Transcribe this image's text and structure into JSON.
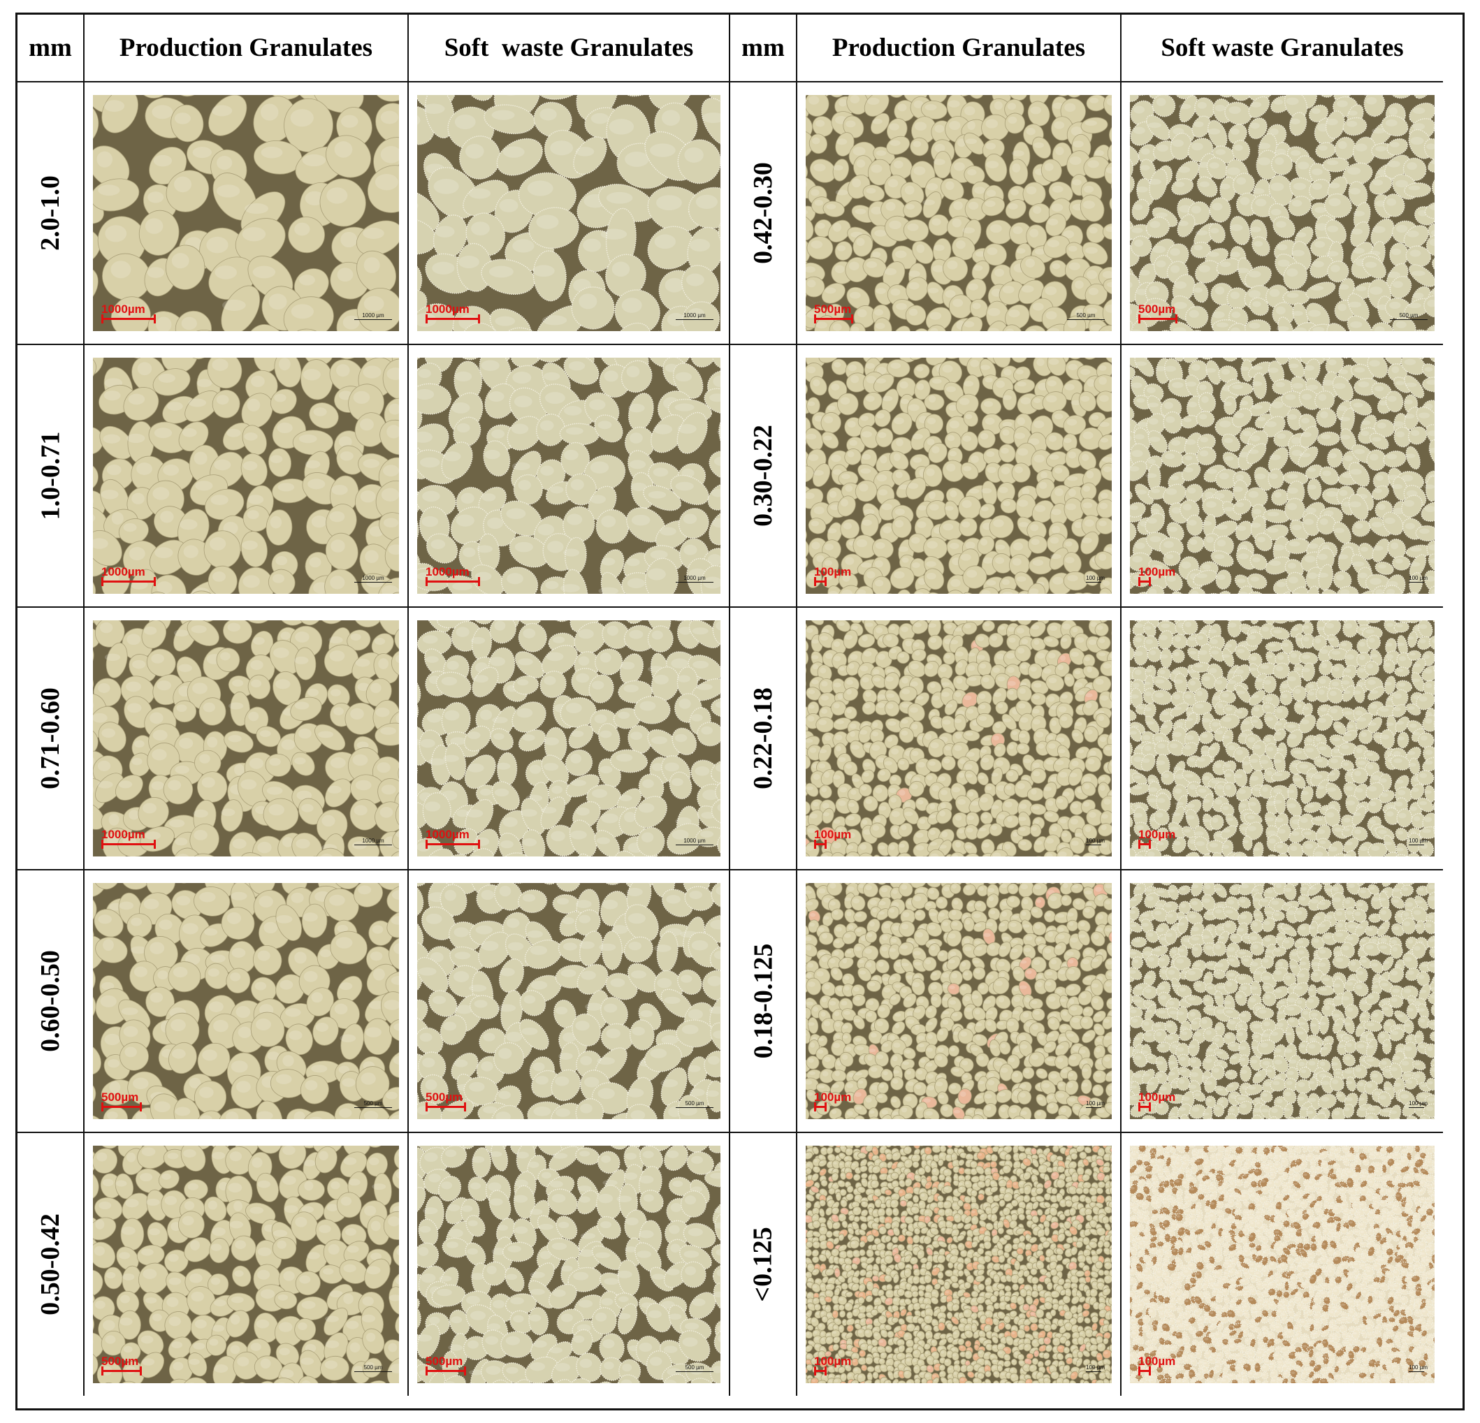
{
  "headers": {
    "left_mm": "mm",
    "left_production": "Production Granulates",
    "left_softwaste": "Soft  waste Granulates",
    "right_mm": "mm",
    "right_production": "Production Granulates",
    "right_softwaste": "Soft waste Granulates"
  },
  "rows": [
    {
      "left_size": "2.0-1.0",
      "left_scale": "1000µm",
      "left_scale_small": "1000 µm",
      "right_size": "0.42-0.30",
      "right_scale": "500µm",
      "right_scale_small": "500 µm"
    },
    {
      "left_size": "1.0-0.71",
      "left_scale": "1000µm",
      "left_scale_small": "1000 µm",
      "right_size": "0.30-0.22",
      "right_scale": "100µm",
      "right_scale_small": "100 µm"
    },
    {
      "left_size": "0.71-0.60",
      "left_scale": "1000µm",
      "left_scale_small": "1000 µm",
      "right_size": "0.22-0.18",
      "right_scale": "100µm",
      "right_scale_small": "100 µm"
    },
    {
      "left_size": "0.60-0.50",
      "left_scale": "500µm",
      "left_scale_small": "500 µm",
      "right_size": "0.18-0.125",
      "right_scale": "100µm",
      "right_scale_small": "100 µm"
    },
    {
      "left_size": "0.50-0.42",
      "left_scale": "500µm",
      "left_scale_small": "500 µm",
      "right_size": "<0.125",
      "right_scale": "100µm",
      "right_scale_small": "100 µm"
    }
  ],
  "colors": {
    "grid_line": "#111111",
    "scale_bar_red": "#e01010",
    "granule_production": "#d8d0a8",
    "granule_softwaste": "#d6d2b0",
    "photo_background": "#6e6446"
  }
}
